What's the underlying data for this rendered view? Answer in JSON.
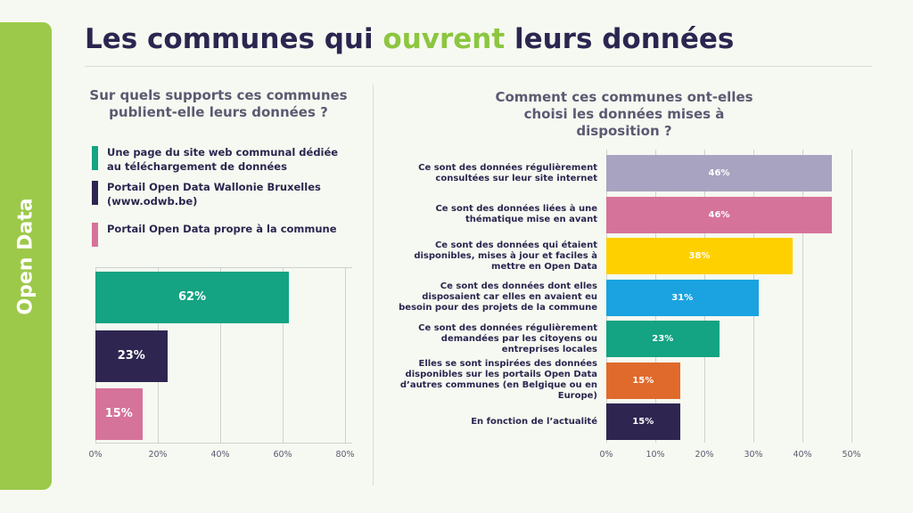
{
  "header": {
    "title_start": "Les communes qui ",
    "title_highlight": "ouvrent",
    "title_end": " leurs données"
  },
  "sidebar": {
    "label": "Open Data"
  },
  "chart_data": [
    {
      "type": "hbar",
      "title": "Sur quels supports ces communes publient-elle leurs données ?",
      "categories": [
        "Une page du site web communal dédiée au téléchargement de données",
        "Portail Open Data Wallonie Bruxelles (www.odwb.be)",
        "Portail Open Data propre à la commune"
      ],
      "values": [
        62,
        23,
        15
      ],
      "value_labels": [
        "62%",
        "23%",
        "15%"
      ],
      "colors": [
        "#14a383",
        "#2e2650",
        "#d6739a"
      ],
      "xlim": [
        0,
        80
      ],
      "xticks": [
        {
          "value": 0,
          "label": "0%"
        },
        {
          "value": 20,
          "label": "20%"
        },
        {
          "value": 40,
          "label": "40%"
        },
        {
          "value": 60,
          "label": "60%"
        },
        {
          "value": 80,
          "label": "80%"
        }
      ],
      "grid": true,
      "legend": "top"
    },
    {
      "type": "hbar",
      "title": "Comment ces communes ont-elles choisi les données mises à disposition ?",
      "categories": [
        "Ce sont des données régulièrement consultées sur leur site internet",
        "Ce sont des données liées à une thématique mise en avant",
        "Ce sont des données qui étaient disponibles, mises à jour et faciles à mettre en Open Data",
        "Ce sont des données dont elles disposaient car elles en avaient eu besoin pour des projets de la commune",
        "Ce sont des données régulièrement demandées par les citoyens ou entreprises locales",
        "Elles se sont inspirées des données disponibles sur les portails Open Data d’autres communes (en Belgique ou en Europe)",
        "En fonction de l’actualité"
      ],
      "values": [
        46,
        46,
        38,
        31,
        23,
        15,
        15
      ],
      "value_labels": [
        "46%",
        "46%",
        "38%",
        "31%",
        "23%",
        "15%",
        "15%"
      ],
      "colors": [
        "#a8a3c0",
        "#d6739a",
        "#ffd000",
        "#1aa3e0",
        "#14a383",
        "#e06a2c",
        "#2e2650"
      ],
      "xlim": [
        0,
        50
      ],
      "xticks": [
        {
          "value": 0,
          "label": "0%"
        },
        {
          "value": 10,
          "label": "10%"
        },
        {
          "value": 20,
          "label": "20%"
        },
        {
          "value": 30,
          "label": "30%"
        },
        {
          "value": 40,
          "label": "40%"
        },
        {
          "value": 50,
          "label": "50%"
        }
      ],
      "grid": true,
      "legend": "none"
    }
  ]
}
